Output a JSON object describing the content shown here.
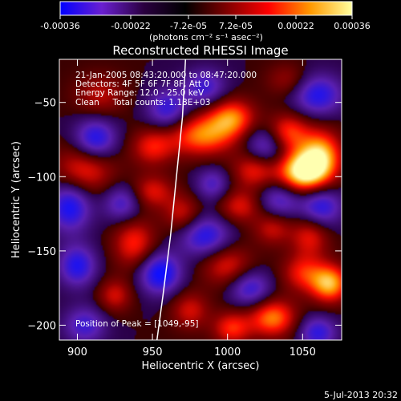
{
  "chart_data": {
    "type": "heatmap",
    "title": "Reconstructed RHESSI Image",
    "xlabel": "Heliocentric X (arcsec)",
    "ylabel": "Heliocentric Y (arcsec)",
    "xlim": [
      888,
      1076
    ],
    "ylim": [
      -210,
      -21
    ],
    "x_ticks": [
      900,
      950,
      1000,
      1050
    ],
    "y_ticks": [
      -50,
      -100,
      -150,
      -200
    ],
    "colorbar": {
      "range": [
        -0.00036,
        0.00036
      ],
      "tick_labels": [
        "-0.00036",
        "-0.00022",
        "-7.2e-05",
        "7.2e-05",
        "0.00022",
        "0.00036"
      ],
      "unit_label": "(photons cm⁻² s⁻¹ asec⁻²)",
      "colors": [
        "#0000ff",
        "#6a1fd0",
        "#2a0040",
        "#000000",
        "#800000",
        "#ff0000",
        "#ff9900",
        "#ffffa0"
      ]
    },
    "annotations": [
      "21-Jan-2005 08:43:20.000 to 08:47:20.000",
      "Detectors: 4F 5F 6F 7F 8F, Att 0",
      "Energy Range: 12.0 - 25.0 keV",
      "Clean     Total counts: 1.18E+03"
    ],
    "peak_label": "Position of Peak = [1049,-95]",
    "peak": {
      "x": 1049,
      "y": -95
    },
    "blobs": [
      {
        "x": 1050,
        "y": -97,
        "sx": 12,
        "sy": 10,
        "v": 0.00036
      },
      {
        "x": 1062,
        "y": -85,
        "sx": 10,
        "sy": 12,
        "v": 0.00026
      },
      {
        "x": 1040,
        "y": -70,
        "sx": 10,
        "sy": 9,
        "v": 0.0002
      },
      {
        "x": 983,
        "y": -72,
        "sx": 16,
        "sy": 10,
        "v": 0.00024
      },
      {
        "x": 1003,
        "y": -60,
        "sx": 11,
        "sy": 9,
        "v": 0.00022
      },
      {
        "x": 1018,
        "y": -95,
        "sx": 10,
        "sy": 9,
        "v": 0.00018
      },
      {
        "x": 950,
        "y": -80,
        "sx": 10,
        "sy": 9,
        "v": 0.00016
      },
      {
        "x": 905,
        "y": -95,
        "sx": 14,
        "sy": 12,
        "v": 0.00018
      },
      {
        "x": 950,
        "y": -110,
        "sx": 10,
        "sy": 8,
        "v": 0.00015
      },
      {
        "x": 938,
        "y": -145,
        "sx": 10,
        "sy": 12,
        "v": 0.00018
      },
      {
        "x": 970,
        "y": -125,
        "sx": 9,
        "sy": 9,
        "v": 0.00014
      },
      {
        "x": 1008,
        "y": -120,
        "sx": 10,
        "sy": 8,
        "v": 0.00015
      },
      {
        "x": 1030,
        "y": -135,
        "sx": 9,
        "sy": 8,
        "v": 0.00013
      },
      {
        "x": 1055,
        "y": -140,
        "sx": 9,
        "sy": 10,
        "v": 0.00016
      },
      {
        "x": 1000,
        "y": -160,
        "sx": 12,
        "sy": 10,
        "v": 0.00016
      },
      {
        "x": 1068,
        "y": -172,
        "sx": 9,
        "sy": 9,
        "v": 0.00028
      },
      {
        "x": 1050,
        "y": -165,
        "sx": 10,
        "sy": 9,
        "v": 0.00016
      },
      {
        "x": 1030,
        "y": -195,
        "sx": 11,
        "sy": 9,
        "v": 0.00024
      },
      {
        "x": 1003,
        "y": -202,
        "sx": 9,
        "sy": 8,
        "v": 0.00018
      },
      {
        "x": 975,
        "y": -190,
        "sx": 9,
        "sy": 9,
        "v": 0.00014
      },
      {
        "x": 925,
        "y": -180,
        "sx": 8,
        "sy": 8,
        "v": 0.00014
      },
      {
        "x": 915,
        "y": -45,
        "sx": 12,
        "sy": 10,
        "v": 0.00012
      },
      {
        "x": 1040,
        "y": -35,
        "sx": 10,
        "sy": 8,
        "v": 0.0001
      },
      {
        "x": 912,
        "y": -75,
        "sx": 10,
        "sy": 10,
        "v": -0.00022
      },
      {
        "x": 960,
        "y": -55,
        "sx": 10,
        "sy": 10,
        "v": -0.00018
      },
      {
        "x": 1060,
        "y": -45,
        "sx": 12,
        "sy": 10,
        "v": -0.0002
      },
      {
        "x": 1025,
        "y": -80,
        "sx": 10,
        "sy": 10,
        "v": -0.00018
      },
      {
        "x": 895,
        "y": -120,
        "sx": 10,
        "sy": 12,
        "v": -0.00022
      },
      {
        "x": 930,
        "y": -118,
        "sx": 9,
        "sy": 9,
        "v": -0.00016
      },
      {
        "x": 985,
        "y": -140,
        "sx": 12,
        "sy": 10,
        "v": -0.0002
      },
      {
        "x": 1035,
        "y": -115,
        "sx": 10,
        "sy": 9,
        "v": -0.00016
      },
      {
        "x": 1062,
        "y": -120,
        "sx": 10,
        "sy": 10,
        "v": -0.0002
      },
      {
        "x": 955,
        "y": -165,
        "sx": 10,
        "sy": 10,
        "v": -0.00024
      },
      {
        "x": 1015,
        "y": -175,
        "sx": 10,
        "sy": 9,
        "v": -0.00018
      },
      {
        "x": 900,
        "y": -160,
        "sx": 9,
        "sy": 10,
        "v": -0.0002
      },
      {
        "x": 905,
        "y": -200,
        "sx": 10,
        "sy": 9,
        "v": -0.00016
      },
      {
        "x": 1060,
        "y": -205,
        "sx": 9,
        "sy": 8,
        "v": -0.00018
      },
      {
        "x": 985,
        "y": -40,
        "sx": 10,
        "sy": 9,
        "v": -0.00016
      },
      {
        "x": 990,
        "y": -105,
        "sx": 8,
        "sy": 8,
        "v": -0.00014
      }
    ],
    "limb": [
      [
        972,
        -21
      ],
      [
        970,
        -60
      ],
      [
        966,
        -100
      ],
      [
        962,
        -140
      ],
      [
        957,
        -180
      ],
      [
        953,
        -210
      ]
    ]
  },
  "footer": {
    "timestamp": "5-Jul-2013 20:32"
  }
}
